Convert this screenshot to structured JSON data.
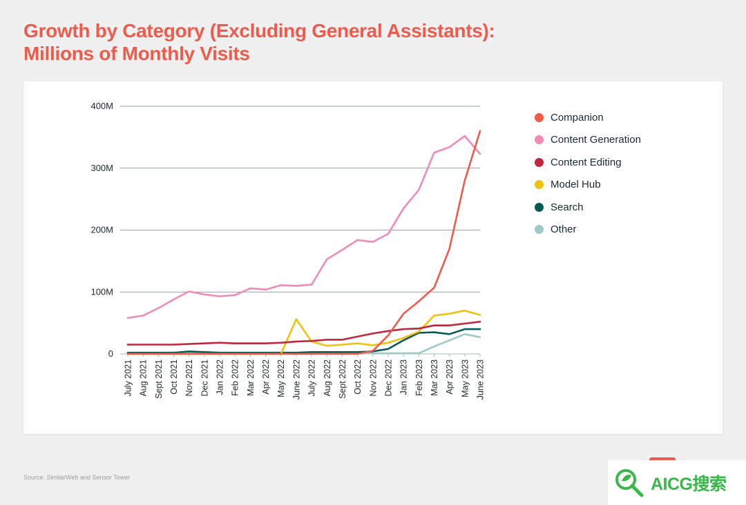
{
  "title_lines": [
    "Growth by Category (Excluding General Assistants):",
    "Millions of Monthly Visits"
  ],
  "source": "Source: SimilarWeb and Sensor Tower",
  "watermark": "AICG搜索",
  "chart_data": {
    "type": "line",
    "title": "Growth by Category (Excluding General Assistants): Millions of Monthly Visits",
    "x": [
      "July 2021",
      "Aug 2021",
      "Sept 2021",
      "Oct 2021",
      "Nov 2021",
      "Dec 2021",
      "Jan 2022",
      "Feb 2022",
      "Mar 2022",
      "Apr 2022",
      "May 2022",
      "June 2022",
      "July 2022",
      "Aug 2022",
      "Sept 2022",
      "Oct 2022",
      "Nov 2022",
      "Dec 2022",
      "Jan 2023",
      "Feb 2023",
      "Mar 2023",
      "Apr 2023",
      "May 2023",
      "June 2023"
    ],
    "ylim": [
      0,
      400
    ],
    "yticks": [
      0,
      100,
      200,
      300,
      400
    ],
    "ytick_labels": [
      "0",
      "100M",
      "200M",
      "300M",
      "400M"
    ],
    "grid": true,
    "legend_position": "right",
    "series": [
      {
        "name": "Companion",
        "color": "#f05a4b",
        "values": [
          0,
          0,
          0,
          0,
          0,
          0,
          0,
          0,
          0,
          0,
          0,
          0,
          0,
          0,
          0,
          0,
          5,
          30,
          65,
          85,
          107,
          170,
          280,
          360
        ]
      },
      {
        "name": "Content Generation",
        "color": "#f28ab5",
        "values": [
          58,
          62,
          74,
          88,
          101,
          96,
          93,
          95,
          106,
          104,
          111,
          110,
          112,
          153,
          168,
          184,
          181,
          194,
          235,
          265,
          325,
          334,
          352,
          323
        ]
      },
      {
        "name": "Content Editing",
        "color": "#c0273d",
        "values": [
          15,
          15,
          15,
          15,
          16,
          17,
          18,
          17,
          17,
          17,
          18,
          20,
          21,
          23,
          23,
          28,
          33,
          37,
          40,
          41,
          46,
          46,
          49,
          52
        ]
      },
      {
        "name": "Model Hub",
        "color": "#eec20f",
        "values": [
          0,
          0,
          0,
          0,
          0,
          0,
          0,
          0,
          0,
          0,
          0,
          56,
          20,
          13,
          15,
          17,
          14,
          18,
          26,
          36,
          62,
          65,
          70,
          63
        ]
      },
      {
        "name": "Search",
        "color": "#085a55",
        "values": [
          2,
          2,
          2,
          2,
          4,
          3,
          2,
          2,
          2,
          2,
          2,
          2,
          3,
          3,
          3,
          3,
          4,
          8,
          22,
          34,
          35,
          32,
          40,
          40
        ]
      },
      {
        "name": "Other",
        "color": "#9ccbc6",
        "values": [
          1,
          1,
          1,
          1,
          1,
          1,
          1,
          1,
          1,
          1,
          1,
          1,
          1,
          1,
          1,
          1,
          1,
          1,
          1,
          1,
          12,
          22,
          32,
          27
        ]
      }
    ]
  }
}
